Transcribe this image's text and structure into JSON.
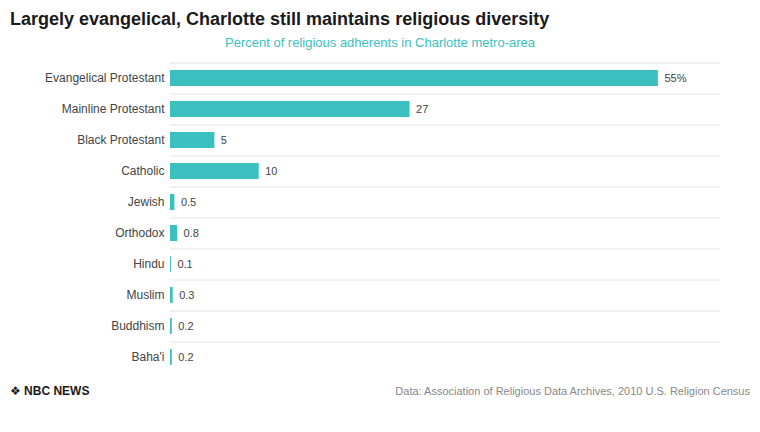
{
  "chart_data": {
    "type": "bar",
    "orientation": "horizontal",
    "title": "Largely evangelical, Charlotte still maintains religious diversity",
    "subtitle": "Percent of religious adherents in Charlotte metro-area",
    "caption": "Data: Association of Religious Data Archives, 2010 U.S. Religion Census",
    "brand": "❖ NBC NEWS",
    "categories": [
      "Evangelical Protestant",
      "Mainline Protestant",
      "Black Protestant",
      "Catholic",
      "Jewish",
      "Orthodox",
      "Hindu",
      "Muslim",
      "Buddhism",
      "Baha'i"
    ],
    "values": [
      55,
      27,
      5,
      10,
      0.5,
      0.8,
      0.1,
      0.3,
      0.2,
      0.2
    ],
    "value_labels": [
      "55%",
      "27",
      "5",
      "10",
      "0.5",
      "0.8",
      "0.1",
      "0.3",
      "0.2",
      "0.2"
    ],
    "color": "#3BBFBF",
    "xlim": [
      0,
      62
    ],
    "grid": true,
    "data_labels": true,
    "tick_labels": "y"
  }
}
